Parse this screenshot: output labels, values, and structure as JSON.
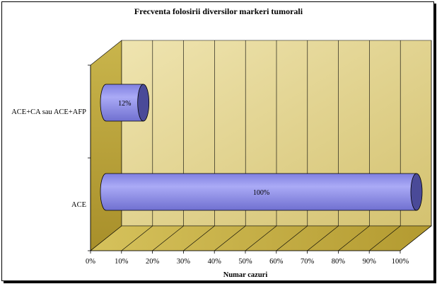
{
  "chart_data": {
    "type": "bar",
    "orientation": "horizontal",
    "style": "3d-cylinder",
    "title": "Frecventa folosirii diversilor markeri tumorali",
    "xlabel": "Numar cazuri",
    "ylabel": "",
    "categories": [
      "ACE",
      "ACE+CA sau ACE+AFP"
    ],
    "values": [
      100,
      12
    ],
    "data_labels": [
      "100%",
      "12%"
    ],
    "xlim": [
      0,
      100
    ],
    "x_ticks": [
      "0%",
      "10%",
      "20%",
      "30%",
      "40%",
      "50%",
      "60%",
      "70%",
      "80%",
      "90%",
      "100%"
    ],
    "grid": true,
    "legend": "none"
  },
  "colors": {
    "bar_body": "#9a9af0",
    "bar_end": "#4a4a98",
    "wall": "#e6d998",
    "floor": "#c8b24a",
    "side_wall": "#b8a43c"
  }
}
